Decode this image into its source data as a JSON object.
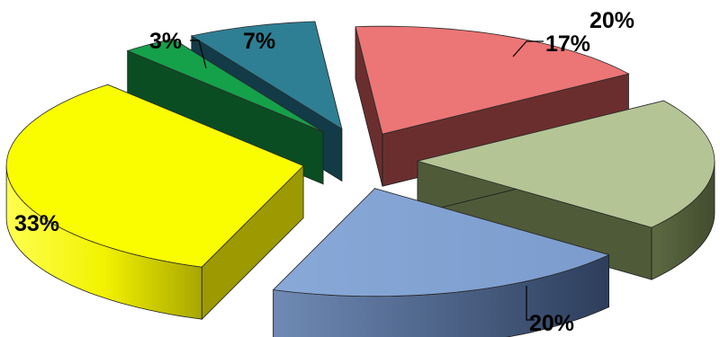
{
  "chart_data": {
    "type": "pie",
    "style": "3d-exploded",
    "slices": [
      {
        "label": "20%",
        "value": 20,
        "color": "#7fa3d3",
        "dark": "#34486b"
      },
      {
        "label": "20%",
        "value": 20,
        "color": "#b5c495",
        "dark": "#4f5a39"
      },
      {
        "label": "17%",
        "value": 17,
        "color": "#ec7575",
        "dark": "#6b2e2e"
      },
      {
        "label": "7%",
        "value": 7,
        "color": "#2e7f94",
        "dark": "#123b47"
      },
      {
        "label": "3%",
        "value": 3,
        "color": "#15a04a",
        "dark": "#0b4d22"
      },
      {
        "label": "33%",
        "value": 33,
        "color": "#fafc00",
        "dark": "#9c9a00"
      }
    ],
    "legend": "none"
  }
}
